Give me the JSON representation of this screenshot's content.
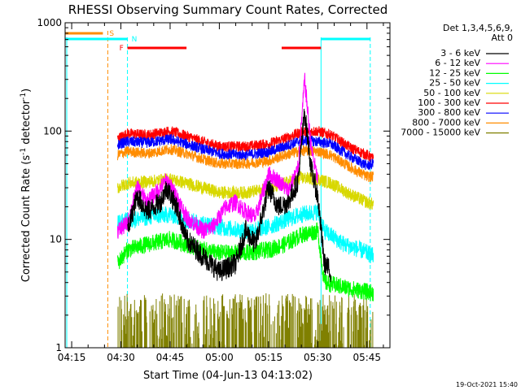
{
  "chart_data": {
    "type": "line",
    "title": "RHESSI Observing Summary Count Rates, Corrected",
    "xlabel": "Start Time (04-Jun-13 04:13:02)",
    "ylabel_main": "Corrected Count Rate (s",
    "ylabel_sup1": "-1",
    "ylabel_mid": " detector",
    "ylabel_sup2": "-1",
    "ylabel_end": ")",
    "yscale": "log",
    "ylim": [
      1,
      1000
    ],
    "xlim_minutes": [
      253,
      292
    ],
    "x_ticks": [
      {
        "m": 255,
        "label": "04:15"
      },
      {
        "m": 270,
        "label": "04:30"
      },
      {
        "m": 285,
        "label": "04:45"
      },
      {
        "m": 300,
        "label": "05:00"
      },
      {
        "m": 315,
        "label": "05:15"
      },
      {
        "m": 330,
        "label": "05:30"
      },
      {
        "m": 345,
        "label": "05:45"
      }
    ],
    "y_ticks": [
      {
        "v": 1,
        "label": "1"
      },
      {
        "v": 10,
        "label": "10"
      },
      {
        "v": 100,
        "label": "100"
      },
      {
        "v": 1000,
        "label": "1000"
      }
    ],
    "legend": {
      "header_line1": "Det 1,3,4,5,6,9,",
      "header_line2": "Att 0",
      "items": [
        {
          "label": "3 - 6 keV",
          "color": "#000000"
        },
        {
          "label": "6 - 12 keV",
          "color": "#ff00ff"
        },
        {
          "label": "12 - 25 keV",
          "color": "#00ff00"
        },
        {
          "label": "25 - 50 keV",
          "color": "#00ffff"
        },
        {
          "label": "50 - 100 keV",
          "color": "#d8d800"
        },
        {
          "label": "100 - 300 keV",
          "color": "#ff0000"
        },
        {
          "label": "300 - 800 keV",
          "color": "#0000ff"
        },
        {
          "label": "800 - 7000 keV",
          "color": "#ff8c00"
        },
        {
          "label": "7000 - 15000 keV",
          "color": "#808000"
        }
      ]
    },
    "flags": {
      "s_label": "S",
      "n_label": "N",
      "f_label": "F",
      "s_color": "#ff8c00",
      "n_color": "#00ffff",
      "f_color": "#ff0000",
      "s_interval": [
        253,
        266
      ],
      "n_intervals": [
        [
          253,
          272
        ],
        [
          331,
          346
        ]
      ],
      "f_intervals": [
        [
          272,
          290
        ],
        [
          319,
          331
        ]
      ]
    },
    "night_boundaries": [
      272,
      331,
      346
    ],
    "saa_boundary": 266,
    "data_start": 269,
    "series": [
      {
        "name": "100 - 300 keV",
        "color": "#ff0000",
        "points": [
          [
            269,
            85
          ],
          [
            272,
            95
          ],
          [
            278,
            92
          ],
          [
            285,
            100
          ],
          [
            290,
            90
          ],
          [
            295,
            80
          ],
          [
            300,
            72
          ],
          [
            308,
            72
          ],
          [
            315,
            76
          ],
          [
            320,
            85
          ],
          [
            325,
            98
          ],
          [
            330,
            100
          ],
          [
            334,
            92
          ],
          [
            340,
            70
          ],
          [
            345,
            60
          ],
          [
            347,
            55
          ]
        ],
        "noise": 0.05
      },
      {
        "name": "300 - 800 keV",
        "color": "#0000ff",
        "points": [
          [
            269,
            75
          ],
          [
            272,
            80
          ],
          [
            278,
            78
          ],
          [
            285,
            84
          ],
          [
            290,
            76
          ],
          [
            295,
            68
          ],
          [
            300,
            62
          ],
          [
            308,
            60
          ],
          [
            315,
            64
          ],
          [
            320,
            72
          ],
          [
            325,
            82
          ],
          [
            330,
            80
          ],
          [
            334,
            76
          ],
          [
            340,
            58
          ],
          [
            345,
            48
          ],
          [
            347,
            50
          ]
        ],
        "noise": 0.05
      },
      {
        "name": "800 - 7000 keV",
        "color": "#ff8c00",
        "points": [
          [
            269,
            60
          ],
          [
            272,
            65
          ],
          [
            278,
            62
          ],
          [
            285,
            68
          ],
          [
            290,
            62
          ],
          [
            295,
            55
          ],
          [
            300,
            50
          ],
          [
            308,
            50
          ],
          [
            315,
            53
          ],
          [
            320,
            60
          ],
          [
            325,
            66
          ],
          [
            330,
            65
          ],
          [
            334,
            60
          ],
          [
            340,
            46
          ],
          [
            345,
            38
          ],
          [
            347,
            38
          ]
        ],
        "noise": 0.05
      },
      {
        "name": "50 - 100 keV",
        "color": "#d8d800",
        "points": [
          [
            269,
            30
          ],
          [
            272,
            33
          ],
          [
            278,
            34
          ],
          [
            285,
            36
          ],
          [
            290,
            33
          ],
          [
            295,
            30
          ],
          [
            300,
            27
          ],
          [
            308,
            27
          ],
          [
            315,
            29
          ],
          [
            320,
            33
          ],
          [
            325,
            37
          ],
          [
            330,
            36
          ],
          [
            334,
            33
          ],
          [
            340,
            26
          ],
          [
            345,
            22
          ],
          [
            347,
            21
          ]
        ],
        "noise": 0.06
      },
      {
        "name": "25 - 50 keV",
        "color": "#00ffff",
        "points": [
          [
            269,
            14
          ],
          [
            272,
            15
          ],
          [
            278,
            16
          ],
          [
            285,
            17
          ],
          [
            290,
            15
          ],
          [
            295,
            14
          ],
          [
            300,
            13
          ],
          [
            308,
            12
          ],
          [
            315,
            13
          ],
          [
            320,
            15
          ],
          [
            325,
            17
          ],
          [
            330,
            18
          ],
          [
            332,
            12
          ],
          [
            338,
            9
          ],
          [
            343,
            8
          ],
          [
            347,
            7
          ]
        ],
        "noise": 0.08
      },
      {
        "name": "12 - 25 keV",
        "color": "#00ff00",
        "points": [
          [
            269,
            6
          ],
          [
            272,
            8
          ],
          [
            278,
            9
          ],
          [
            285,
            10
          ],
          [
            290,
            9
          ],
          [
            295,
            8
          ],
          [
            300,
            7.5
          ],
          [
            308,
            7.5
          ],
          [
            315,
            8
          ],
          [
            320,
            9
          ],
          [
            325,
            11
          ],
          [
            330,
            12
          ],
          [
            332,
            4
          ],
          [
            340,
            3.5
          ],
          [
            347,
            3.2
          ]
        ],
        "noise": 0.08
      },
      {
        "name": "6 - 12 keV",
        "color": "#ff00ff",
        "points": [
          [
            269,
            12
          ],
          [
            272,
            14
          ],
          [
            275,
            30
          ],
          [
            278,
            22
          ],
          [
            282,
            30
          ],
          [
            284,
            35
          ],
          [
            287,
            25
          ],
          [
            290,
            16
          ],
          [
            295,
            12
          ],
          [
            298,
            13
          ],
          [
            302,
            20
          ],
          [
            305,
            22
          ],
          [
            308,
            18
          ],
          [
            311,
            16
          ],
          [
            315,
            40
          ],
          [
            318,
            35
          ],
          [
            321,
            28
          ],
          [
            324,
            45
          ],
          [
            326,
            300
          ],
          [
            328,
            70
          ],
          [
            330,
            35
          ]
        ],
        "noise": 0.08
      },
      {
        "name": "3 - 6 keV",
        "color": "#000000",
        "points": [
          [
            272,
            12
          ],
          [
            275,
            25
          ],
          [
            278,
            18
          ],
          [
            282,
            22
          ],
          [
            284,
            30
          ],
          [
            287,
            20
          ],
          [
            290,
            10
          ],
          [
            295,
            7
          ],
          [
            300,
            5
          ],
          [
            305,
            6
          ],
          [
            308,
            12
          ],
          [
            311,
            9
          ],
          [
            315,
            30
          ],
          [
            318,
            20
          ],
          [
            321,
            22
          ],
          [
            324,
            35
          ],
          [
            326,
            150
          ],
          [
            328,
            45
          ],
          [
            330,
            25
          ],
          [
            332,
            6
          ],
          [
            334,
            5
          ]
        ],
        "noise": 0.1
      }
    ],
    "footer_date": "19-Oct-2021 15:40"
  }
}
